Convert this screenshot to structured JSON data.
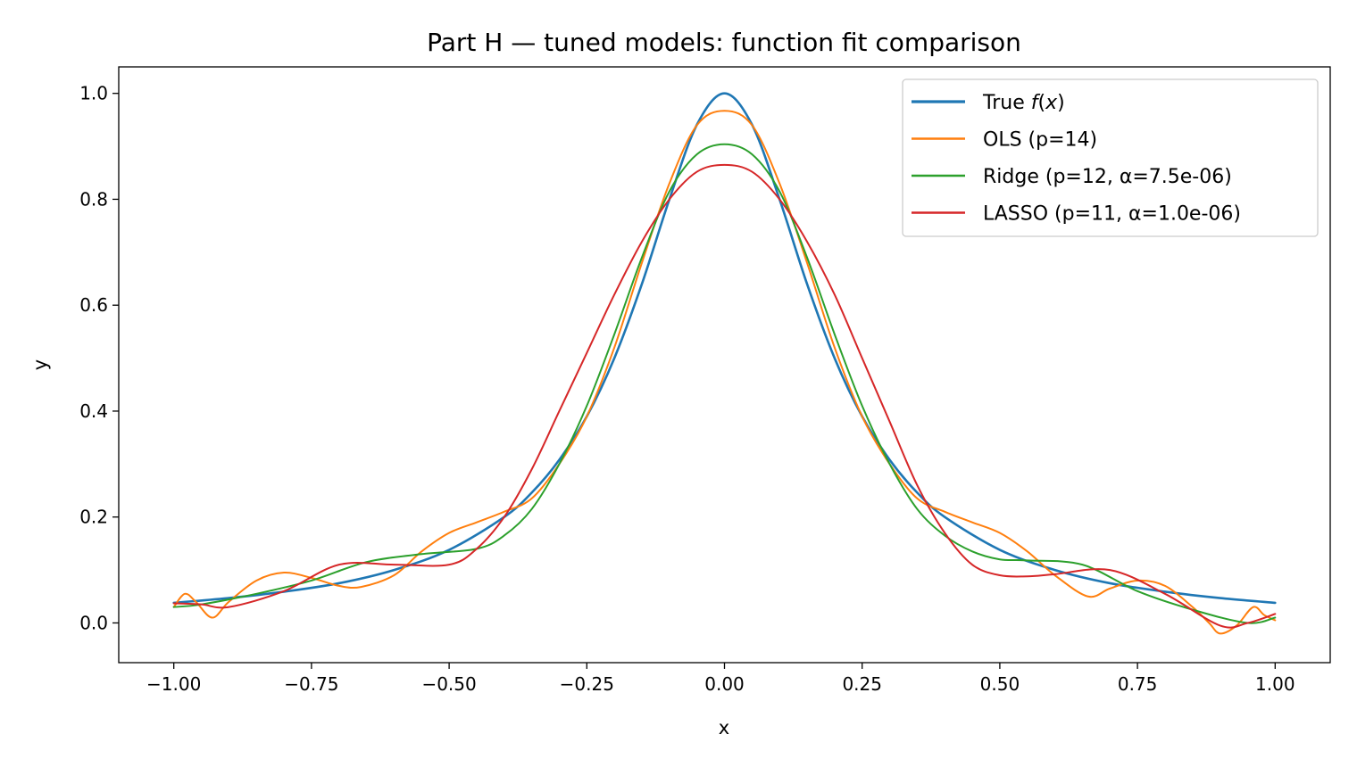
{
  "chart_data": {
    "type": "line",
    "title": "Part H — tuned models: function fit comparison",
    "xlabel": "x",
    "ylabel": "y",
    "xlim": [
      -1.1,
      1.1
    ],
    "ylim": [
      -0.075,
      1.05
    ],
    "grid": false,
    "legend_position": "top-right",
    "x_ticks": [
      -1.0,
      -0.75,
      -0.5,
      -0.25,
      0.0,
      0.25,
      0.5,
      0.75,
      1.0
    ],
    "x_tick_labels": [
      "−1.00",
      "−0.75",
      "−0.50",
      "−0.25",
      "0.00",
      "0.25",
      "0.50",
      "0.75",
      "1.00"
    ],
    "y_ticks": [
      0.0,
      0.2,
      0.4,
      0.6,
      0.8,
      1.0
    ],
    "y_tick_labels": [
      "0.0",
      "0.2",
      "0.4",
      "0.6",
      "0.8",
      "1.0"
    ],
    "series": [
      {
        "name": "True f(x)",
        "legend_prefix": "True ",
        "legend_math": "f",
        "legend_suffix_open": "(",
        "legend_math_var": "x",
        "legend_suffix_close": ")",
        "color": "#1f77b4",
        "width": 2.6,
        "x": [
          -1.0,
          -0.9,
          -0.8,
          -0.7,
          -0.6,
          -0.5,
          -0.4,
          -0.35,
          -0.3,
          -0.25,
          -0.2,
          -0.15,
          -0.1,
          -0.05,
          0.0,
          0.05,
          0.1,
          0.15,
          0.2,
          0.25,
          0.3,
          0.35,
          0.4,
          0.5,
          0.6,
          0.7,
          0.8,
          0.9,
          1.0
        ],
        "y": [
          0.038,
          0.047,
          0.059,
          0.075,
          0.1,
          0.138,
          0.2,
          0.246,
          0.308,
          0.39,
          0.5,
          0.64,
          0.8,
          0.941,
          1.0,
          0.941,
          0.8,
          0.64,
          0.5,
          0.39,
          0.308,
          0.246,
          0.2,
          0.138,
          0.1,
          0.075,
          0.059,
          0.047,
          0.038
        ]
      },
      {
        "name": "OLS (p=14)",
        "color": "#ff7f0e",
        "width": 2.0,
        "x": [
          -1.0,
          -0.98,
          -0.96,
          -0.93,
          -0.9,
          -0.85,
          -0.8,
          -0.75,
          -0.7,
          -0.66,
          -0.6,
          -0.55,
          -0.5,
          -0.45,
          -0.4,
          -0.35,
          -0.3,
          -0.25,
          -0.2,
          -0.15,
          -0.1,
          -0.05,
          0.0,
          0.05,
          0.1,
          0.15,
          0.2,
          0.25,
          0.3,
          0.35,
          0.4,
          0.45,
          0.5,
          0.55,
          0.6,
          0.66,
          0.7,
          0.75,
          0.8,
          0.85,
          0.88,
          0.9,
          0.93,
          0.96,
          0.98,
          1.0
        ],
        "y": [
          0.03,
          0.055,
          0.04,
          0.01,
          0.04,
          0.08,
          0.095,
          0.085,
          0.07,
          0.068,
          0.09,
          0.135,
          0.17,
          0.19,
          0.21,
          0.235,
          0.3,
          0.39,
          0.52,
          0.68,
          0.83,
          0.94,
          0.967,
          0.94,
          0.83,
          0.68,
          0.52,
          0.39,
          0.3,
          0.235,
          0.21,
          0.19,
          0.17,
          0.135,
          0.09,
          0.05,
          0.065,
          0.08,
          0.07,
          0.03,
          0.0,
          -0.02,
          -0.005,
          0.03,
          0.015,
          0.005
        ]
      },
      {
        "name": "Ridge (p=12, α=7.5e-06)",
        "color": "#2ca02c",
        "width": 2.0,
        "x": [
          -1.0,
          -0.95,
          -0.85,
          -0.75,
          -0.65,
          -0.55,
          -0.45,
          -0.4,
          -0.35,
          -0.3,
          -0.25,
          -0.2,
          -0.15,
          -0.1,
          -0.05,
          0.0,
          0.05,
          0.1,
          0.15,
          0.2,
          0.25,
          0.3,
          0.35,
          0.4,
          0.45,
          0.5,
          0.55,
          0.65,
          0.75,
          0.85,
          0.95,
          1.0
        ],
        "y": [
          0.03,
          0.035,
          0.055,
          0.08,
          0.115,
          0.13,
          0.14,
          0.165,
          0.215,
          0.3,
          0.41,
          0.545,
          0.69,
          0.815,
          0.885,
          0.904,
          0.885,
          0.815,
          0.69,
          0.545,
          0.41,
          0.3,
          0.215,
          0.165,
          0.135,
          0.12,
          0.118,
          0.11,
          0.06,
          0.025,
          0.0,
          0.01
        ]
      },
      {
        "name": "LASSO (p=11, α=1.0e-06)",
        "color": "#d62728",
        "width": 2.0,
        "x": [
          -1.0,
          -0.95,
          -0.9,
          -0.8,
          -0.7,
          -0.6,
          -0.5,
          -0.45,
          -0.4,
          -0.35,
          -0.3,
          -0.25,
          -0.2,
          -0.15,
          -0.1,
          -0.05,
          0.0,
          0.05,
          0.1,
          0.15,
          0.2,
          0.25,
          0.3,
          0.35,
          0.4,
          0.45,
          0.5,
          0.55,
          0.6,
          0.7,
          0.8,
          0.9,
          0.95,
          1.0
        ],
        "y": [
          0.037,
          0.035,
          0.03,
          0.06,
          0.11,
          0.11,
          0.11,
          0.14,
          0.2,
          0.29,
          0.4,
          0.51,
          0.62,
          0.72,
          0.8,
          0.852,
          0.865,
          0.852,
          0.8,
          0.72,
          0.62,
          0.5,
          0.38,
          0.26,
          0.17,
          0.11,
          0.09,
          0.088,
          0.092,
          0.1,
          0.055,
          -0.005,
          0.0,
          0.017
        ]
      }
    ]
  }
}
